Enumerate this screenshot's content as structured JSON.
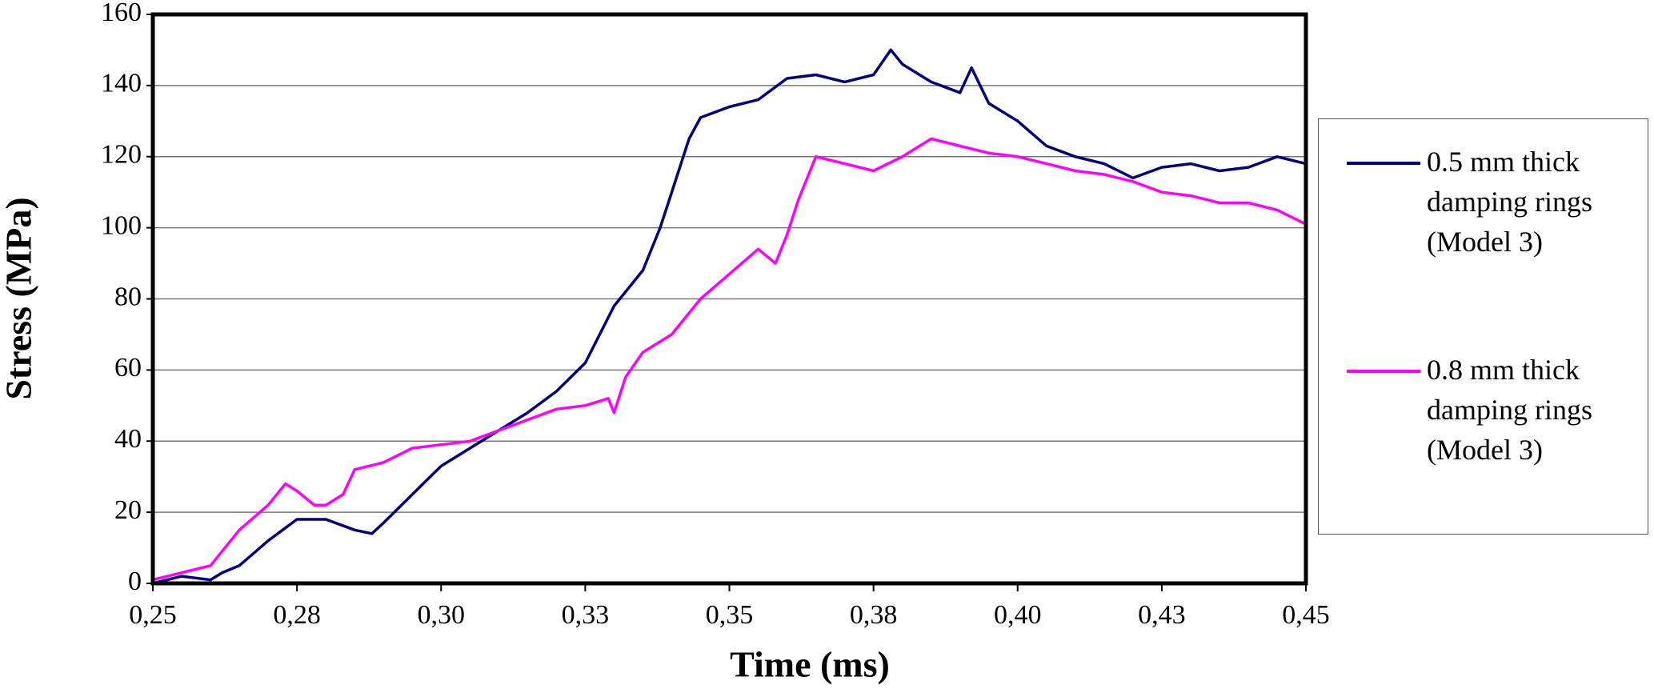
{
  "chart_data": {
    "type": "line",
    "x_label": "Time (ms)",
    "y_label": "Stress (MPa)",
    "xlim": [
      0.25,
      0.45
    ],
    "xticks": [
      {
        "value": 0.25,
        "label": "0,25"
      },
      {
        "value": 0.275,
        "label": "0,28"
      },
      {
        "value": 0.3,
        "label": "0,30"
      },
      {
        "value": 0.325,
        "label": "0,33"
      },
      {
        "value": 0.35,
        "label": "0,35"
      },
      {
        "value": 0.375,
        "label": "0,38"
      },
      {
        "value": 0.4,
        "label": "0,40"
      },
      {
        "value": 0.425,
        "label": "0,43"
      },
      {
        "value": 0.45,
        "label": "0,45"
      }
    ],
    "ylim": [
      0,
      160
    ],
    "yticks": [
      0,
      20,
      40,
      60,
      80,
      100,
      120,
      140,
      160
    ],
    "grid": true,
    "series": [
      {
        "name": "0.5 mm thick damping rings (Model 3)",
        "color": "#000080",
        "x": [
          0.25,
          0.255,
          0.26,
          0.262,
          0.265,
          0.27,
          0.275,
          0.28,
          0.285,
          0.288,
          0.29,
          0.295,
          0.3,
          0.305,
          0.31,
          0.315,
          0.32,
          0.325,
          0.33,
          0.335,
          0.338,
          0.34,
          0.343,
          0.345,
          0.35,
          0.355,
          0.36,
          0.365,
          0.37,
          0.375,
          0.378,
          0.38,
          0.385,
          0.39,
          0.392,
          0.395,
          0.4,
          0.405,
          0.41,
          0.415,
          0.42,
          0.425,
          0.43,
          0.435,
          0.44,
          0.445,
          0.45
        ],
        "values": [
          0,
          2,
          1,
          3,
          5,
          12,
          18,
          18,
          15,
          14,
          17,
          25,
          33,
          38,
          43,
          48,
          54,
          62,
          78,
          88,
          100,
          110,
          125,
          131,
          134,
          136,
          142,
          143,
          141,
          143,
          150,
          146,
          141,
          138,
          145,
          135,
          130,
          123,
          120,
          118,
          114,
          117,
          118,
          116,
          117,
          120,
          118
        ]
      },
      {
        "name": "0.8 mm thick damping rings (Model 3)",
        "color": "#ff00ff",
        "x": [
          0.25,
          0.255,
          0.26,
          0.265,
          0.27,
          0.273,
          0.275,
          0.278,
          0.28,
          0.283,
          0.285,
          0.29,
          0.295,
          0.3,
          0.305,
          0.31,
          0.315,
          0.32,
          0.325,
          0.329,
          0.33,
          0.332,
          0.335,
          0.34,
          0.345,
          0.35,
          0.355,
          0.358,
          0.36,
          0.362,
          0.365,
          0.37,
          0.375,
          0.38,
          0.385,
          0.39,
          0.395,
          0.4,
          0.405,
          0.41,
          0.415,
          0.42,
          0.425,
          0.43,
          0.435,
          0.44,
          0.445,
          0.45
        ],
        "values": [
          1,
          3,
          5,
          15,
          22,
          28,
          26,
          22,
          22,
          25,
          32,
          34,
          38,
          39,
          40,
          43,
          46,
          49,
          50,
          52,
          48,
          58,
          65,
          70,
          80,
          87,
          94,
          90,
          98,
          108,
          120,
          118,
          116,
          120,
          125,
          123,
          121,
          120,
          118,
          116,
          115,
          113,
          110,
          109,
          107,
          107,
          105,
          101
        ]
      }
    ]
  }
}
